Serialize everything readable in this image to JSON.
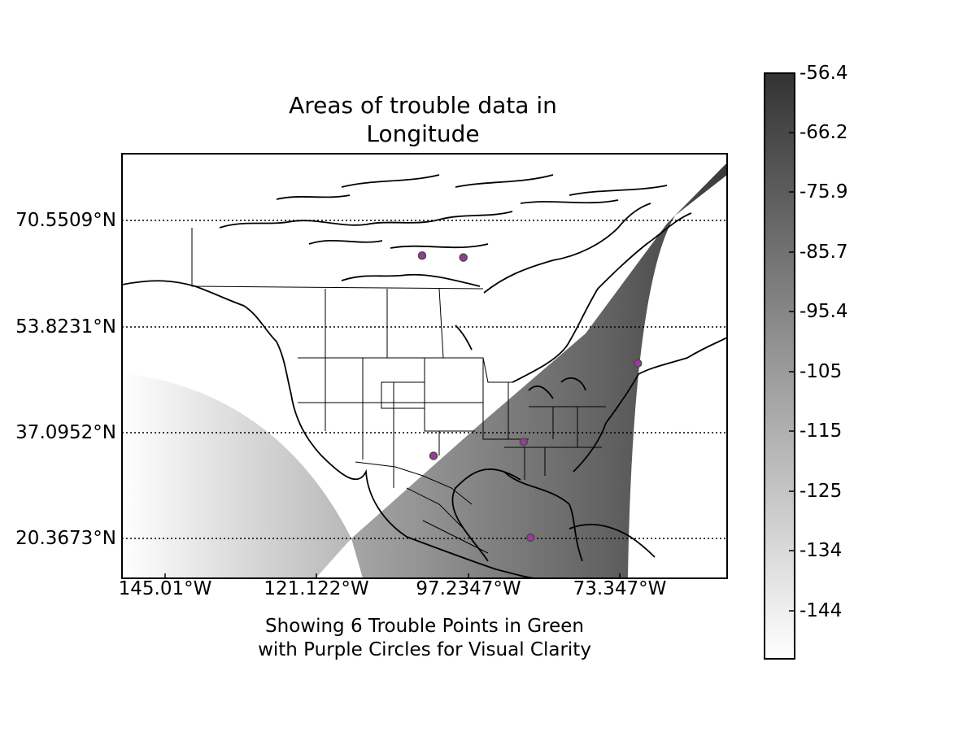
{
  "title_lines": [
    "Areas of trouble data in",
    "Longitude"
  ],
  "caption_lines": [
    "Showing 6 Trouble Points in Green",
    "with Purple Circles for Visual Clarity"
  ],
  "map": {
    "latitude_labels": [
      "70.5509°N",
      "53.8231°N",
      "37.0952°N",
      "20.3673°N"
    ],
    "longitude_labels": [
      "145.01°W",
      "121.122°W",
      "97.2347°W",
      "73.347°W"
    ],
    "gridlines": "dotted",
    "region": "North America"
  },
  "colorbar": {
    "tick_labels": [
      "-56.4",
      "-66.2",
      "-75.9",
      "-85.7",
      "-95.4",
      "-105",
      "-115",
      "-125",
      "-134",
      "-144"
    ],
    "colormap": "grayscale",
    "color_high": "#333333",
    "color_low": "#ffffff"
  },
  "points": {
    "fill": "#9b3a9b",
    "stroke": "#4a4a4a",
    "items": [
      {
        "lon": -104.5,
        "lat": 65.0
      },
      {
        "lon": -98.0,
        "lat": 64.7
      },
      {
        "lon": -70.5,
        "lat": 48.0
      },
      {
        "lon": -88.5,
        "lat": 35.6
      },
      {
        "lon": -102.7,
        "lat": 33.4
      },
      {
        "lon": -87.4,
        "lat": 20.5
      }
    ]
  }
}
